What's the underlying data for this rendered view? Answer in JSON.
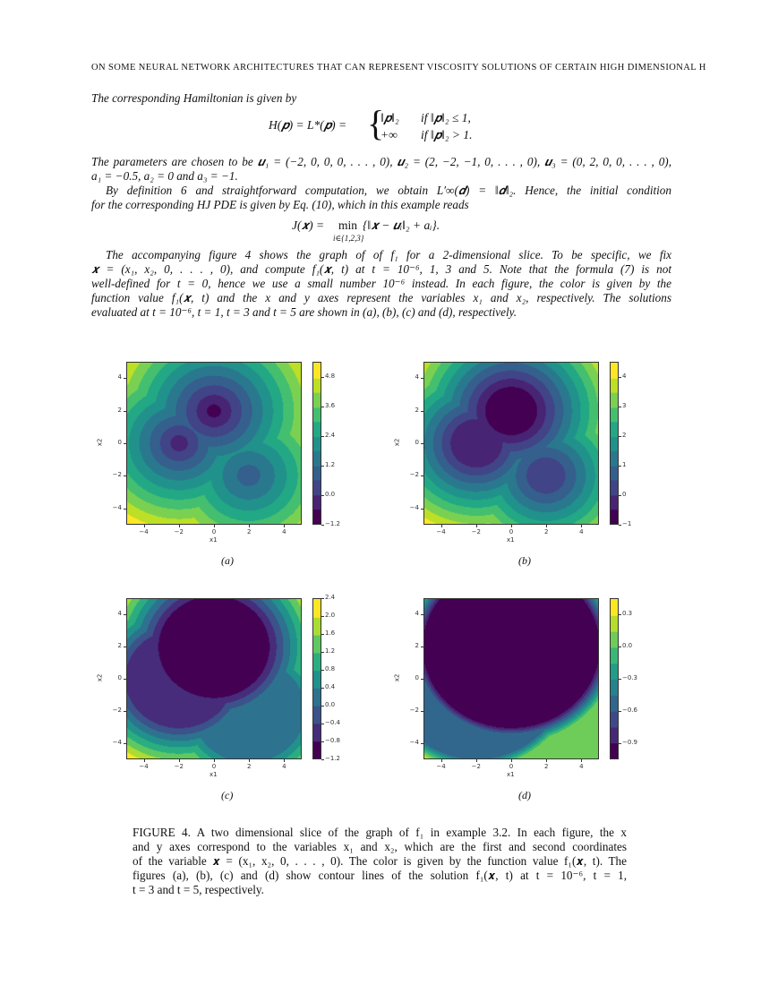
{
  "header": "ON SOME NEURAL NETWORK ARCHITECTURES THAT CAN REPRESENT VISCOSITY SOLUTIONS OF CERTAIN HIGH DIMENSIONAL H",
  "para1": "The corresponding Hamiltonian is given by",
  "eq_hamiltonian": {
    "lhs": "H(𝒑) = L*(𝒑) =",
    "case1_value": "‖𝒑‖₂",
    "case1_cond": "if ‖𝒑‖₂ ≤ 1,",
    "case2_value": "+∞",
    "case2_cond": "if ‖𝒑‖₂ > 1."
  },
  "para2_lines": [
    "The parameters are chosen to be 𝒖₁ = (−2, 0, 0, 0, . . . , 0), 𝒖₂ = (2, −2, −1, 0, . . . , 0), 𝒖₃ = (0, 2, 0, 0, . . . , 0),",
    "a₁ = −0.5, a₂ = 0 and a₃ = −1."
  ],
  "para3_lines": [
    "By definition 6 and straightforward computation, we obtain L′∞(𝒅) = ‖𝒅‖₂. Hence, the initial condition",
    "for the corresponding HJ PDE is given by Eq. (10), which in this example reads"
  ],
  "eq_initial": {
    "lhs": "J(𝒙) =",
    "op": "min",
    "sub": "i∈{1,2,3}",
    "rhs": "{‖𝒙 − 𝒖ᵢ‖₂ + aᵢ}."
  },
  "para4_lines": [
    "The accompanying figure 4 shows the graph of of f₁ for a 2-dimensional slice. To be specific, we fix",
    "𝒙 = (x₁, x₂, 0, . . . , 0), and compute f₁(𝒙, t) at t = 10⁻⁶, 1, 3 and 5. Note that the formula (7) is not",
    "well-defined for t = 0, hence we use a small number 10⁻⁶ instead. In each figure, the color is given by the",
    "function value f₁(𝒙, t) and the x and y axes represent the variables x₁ and x₂, respectively. The solutions",
    "evaluated at t = 10⁻⁶, t = 1, t = 3 and t = 5 are shown in (a), (b), (c) and (d), respectively."
  ],
  "caption_lines": [
    "FIGURE 4. A two dimensional slice of the graph of f₁ in example 3.2. In each figure, the x",
    "and y axes correspond to the variables x₁ and x₂, which are the first and second coordinates",
    "of the variable 𝒙 = (x₁, x₂, 0, . . . , 0). The color is given by the function value f₁(𝒙, t). The",
    "figures (a), (b), (c) and (d) show contour lines of the solution f₁(𝒙, t) at t = 10⁻⁶, t = 1,",
    "t = 3 and t = 5, respectively."
  ],
  "chart_data": [
    {
      "type": "heatmap",
      "subcaption": "(a)",
      "t": 1e-06,
      "xlabel": "x1",
      "ylabel": "x2",
      "xlim": [
        -5,
        5
      ],
      "ylim": [
        -5,
        5
      ],
      "xticks": [
        "−4",
        "−2",
        "0",
        "2",
        "4"
      ],
      "yticks": [
        "−4",
        "−2",
        "0",
        "2",
        "4"
      ],
      "levels": {
        "min": -1.2,
        "max": 5.4,
        "step": 0.6
      },
      "colorbar_ticks": [
        "−1.2",
        "0.0",
        "1.2",
        "2.4",
        "3.6",
        "4.8"
      ],
      "colorbar_tick_values": [
        -1.2,
        0,
        1.2,
        2.4,
        3.6,
        4.8
      ],
      "colormap": "viridis"
    },
    {
      "type": "heatmap",
      "subcaption": "(b)",
      "t": 1,
      "xlabel": "x1",
      "ylabel": "x2",
      "xlim": [
        -5,
        5
      ],
      "ylim": [
        -5,
        5
      ],
      "xticks": [
        "−4",
        "−2",
        "0",
        "2",
        "4"
      ],
      "yticks": [
        "−4",
        "−2",
        "0",
        "2",
        "4"
      ],
      "levels": {
        "min": -1,
        "max": 4.5,
        "step": 0.5
      },
      "colorbar_ticks": [
        "−1",
        "0",
        "1",
        "2",
        "3",
        "4"
      ],
      "colorbar_tick_values": [
        -1,
        0,
        1,
        2,
        3,
        4
      ],
      "colormap": "viridis"
    },
    {
      "type": "heatmap",
      "subcaption": "(c)",
      "t": 3,
      "xlabel": "x1",
      "ylabel": "x2",
      "xlim": [
        -5,
        5
      ],
      "ylim": [
        -5,
        5
      ],
      "xticks": [
        "−4",
        "−2",
        "0",
        "2",
        "4"
      ],
      "yticks": [
        "−4",
        "−2",
        "0",
        "2",
        "4"
      ],
      "levels": {
        "min": -1.2,
        "max": 2.4,
        "step": 0.4
      },
      "colorbar_ticks": [
        "−1.2",
        "−0.8",
        "−0.4",
        "0.0",
        "0.4",
        "0.8",
        "1.2",
        "1.6",
        "2.0",
        "2.4"
      ],
      "colorbar_tick_values": [
        -1.2,
        -0.8,
        -0.4,
        0,
        0.4,
        0.8,
        1.2,
        1.6,
        2.0,
        2.4
      ],
      "colormap": "viridis"
    },
    {
      "type": "heatmap",
      "subcaption": "(d)",
      "t": 5,
      "xlabel": "x1",
      "ylabel": "x2",
      "xlim": [
        -5,
        5
      ],
      "ylim": [
        -5,
        5
      ],
      "xticks": [
        "−4",
        "−2",
        "0",
        "2",
        "4"
      ],
      "yticks": [
        "−4",
        "−2",
        "0",
        "2",
        "4"
      ],
      "levels": {
        "min": -1.05,
        "max": 0.45,
        "step": 0.15
      },
      "colorbar_ticks": [
        "−0.9",
        "−0.6",
        "−0.3",
        "0.0",
        "0.3"
      ],
      "colorbar_tick_values": [
        -0.9,
        -0.6,
        -0.3,
        0,
        0.3
      ],
      "colormap": "viridis"
    }
  ],
  "model": {
    "u": [
      [
        -2,
        0,
        0
      ],
      [
        2,
        -2,
        -1
      ],
      [
        0,
        2,
        0
      ]
    ],
    "a": [
      -0.5,
      0,
      -1
    ]
  }
}
